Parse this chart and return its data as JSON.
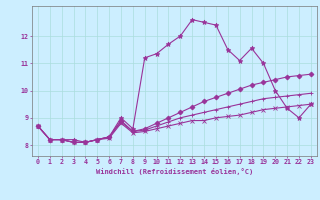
{
  "title": "",
  "xlabel": "Windchill (Refroidissement éolien,°C)",
  "ylabel": "",
  "bg_color": "#cceeff",
  "line_color": "#993399",
  "grid_color": "#aadddd",
  "xlim": [
    -0.5,
    23.5
  ],
  "ylim": [
    7.6,
    13.1
  ],
  "yticks": [
    8,
    9,
    10,
    11,
    12
  ],
  "xticks": [
    0,
    1,
    2,
    3,
    4,
    5,
    6,
    7,
    8,
    9,
    10,
    11,
    12,
    13,
    14,
    15,
    16,
    17,
    18,
    19,
    20,
    21,
    22,
    23
  ],
  "series": [
    {
      "x": [
        0,
        1,
        2,
        3,
        4,
        5,
        6,
        7,
        8,
        9,
        10,
        11,
        12,
        13,
        14,
        15,
        16,
        17,
        18,
        19,
        20,
        21,
        22,
        23
      ],
      "y": [
        8.7,
        8.2,
        8.2,
        8.2,
        8.1,
        8.2,
        8.3,
        9.0,
        8.6,
        11.2,
        11.35,
        11.7,
        12.0,
        12.6,
        12.5,
        12.4,
        11.5,
        11.1,
        11.55,
        11.0,
        10.0,
        9.35,
        9.0,
        9.5
      ],
      "marker": "*",
      "ms": 3.5
    },
    {
      "x": [
        0,
        1,
        2,
        3,
        4,
        5,
        6,
        7,
        8,
        9,
        10,
        11,
        12,
        13,
        14,
        15,
        16,
        17,
        18,
        19,
        20,
        21,
        22,
        23
      ],
      "y": [
        8.7,
        8.2,
        8.2,
        8.1,
        8.1,
        8.2,
        8.3,
        8.9,
        8.5,
        8.6,
        8.8,
        9.0,
        9.2,
        9.4,
        9.6,
        9.75,
        9.9,
        10.05,
        10.2,
        10.3,
        10.4,
        10.5,
        10.55,
        10.6
      ],
      "marker": "D",
      "ms": 2.5
    },
    {
      "x": [
        0,
        1,
        2,
        3,
        4,
        5,
        6,
        7,
        8,
        9,
        10,
        11,
        12,
        13,
        14,
        15,
        16,
        17,
        18,
        19,
        20,
        21,
        22,
        23
      ],
      "y": [
        8.7,
        8.2,
        8.2,
        8.1,
        8.1,
        8.2,
        8.3,
        8.85,
        8.5,
        8.55,
        8.7,
        8.85,
        9.0,
        9.1,
        9.2,
        9.3,
        9.4,
        9.5,
        9.6,
        9.7,
        9.75,
        9.8,
        9.85,
        9.9
      ],
      "marker": "+",
      "ms": 3.0
    },
    {
      "x": [
        0,
        1,
        2,
        3,
        4,
        5,
        6,
        7,
        8,
        9,
        10,
        11,
        12,
        13,
        14,
        15,
        16,
        17,
        18,
        19,
        20,
        21,
        22,
        23
      ],
      "y": [
        8.7,
        8.2,
        8.2,
        8.1,
        8.1,
        8.2,
        8.25,
        8.8,
        8.45,
        8.5,
        8.6,
        8.7,
        8.8,
        8.9,
        8.9,
        9.0,
        9.05,
        9.1,
        9.2,
        9.3,
        9.35,
        9.4,
        9.45,
        9.5
      ],
      "marker": "x",
      "ms": 2.5
    }
  ],
  "xlabel_fontsize": 5.0,
  "tick_fontsize": 4.8,
  "lw": 0.8
}
